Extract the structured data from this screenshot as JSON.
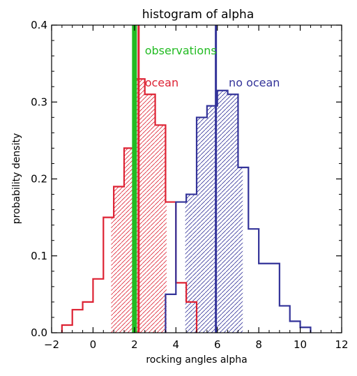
{
  "chart_data": {
    "type": "histogram",
    "title": "histogram of alpha",
    "xlabel": "rocking angles alpha",
    "ylabel": "probability density",
    "xlim": [
      -2,
      12
    ],
    "ylim": [
      0,
      0.4
    ],
    "xticks": [
      -2,
      0,
      2,
      4,
      6,
      8,
      10,
      12
    ],
    "xtick_labels": [
      "−2",
      "0",
      "2",
      "4",
      "6",
      "8",
      "10",
      "12"
    ],
    "yticks": [
      0,
      0.1,
      0.2,
      0.3,
      0.4
    ],
    "ytick_labels": [
      "0.0",
      "0.1",
      "0.2",
      "0.3",
      "0.4"
    ],
    "bin_width": 0.5,
    "series": [
      {
        "name": "ocean",
        "color": "#dd2233",
        "bin_starts": [
          -1.5,
          -1.0,
          -0.5,
          0.0,
          0.5,
          1.0,
          1.5,
          2.0,
          2.5,
          3.0,
          3.5,
          4.0,
          4.5
        ],
        "values": [
          0.01,
          0.03,
          0.04,
          0.07,
          0.15,
          0.19,
          0.24,
          0.33,
          0.31,
          0.27,
          0.17,
          0.065,
          0.04
        ],
        "hatch_range": [
          0.875,
          3.55
        ],
        "label_x": 2.5,
        "label_y": 0.32
      },
      {
        "name": "no ocean",
        "color": "#333399",
        "bin_starts": [
          3.5,
          4.0,
          4.5,
          5.0,
          5.5,
          6.0,
          6.5,
          7.0,
          7.5,
          8.0,
          8.5,
          9.0,
          9.5,
          10.0
        ],
        "values": [
          0.05,
          0.17,
          0.18,
          0.28,
          0.295,
          0.315,
          0.31,
          0.215,
          0.135,
          0.09,
          0.09,
          0.035,
          0.015,
          0.007
        ],
        "hatch_range": [
          4.45,
          7.23
        ],
        "label_x": 6.55,
        "label_y": 0.32
      }
    ],
    "vertical_lines": [
      {
        "label": "",
        "x": 2.2,
        "color": "#dd2233",
        "width": 3
      },
      {
        "label": "",
        "x": 5.93,
        "color": "#333399",
        "width": 3
      },
      {
        "label": "observations",
        "x": 2.0,
        "color": "#22bb22",
        "width": 7,
        "label_x": 2.5,
        "label_y": 0.362
      }
    ],
    "grid": false,
    "legend": "inline labels"
  }
}
